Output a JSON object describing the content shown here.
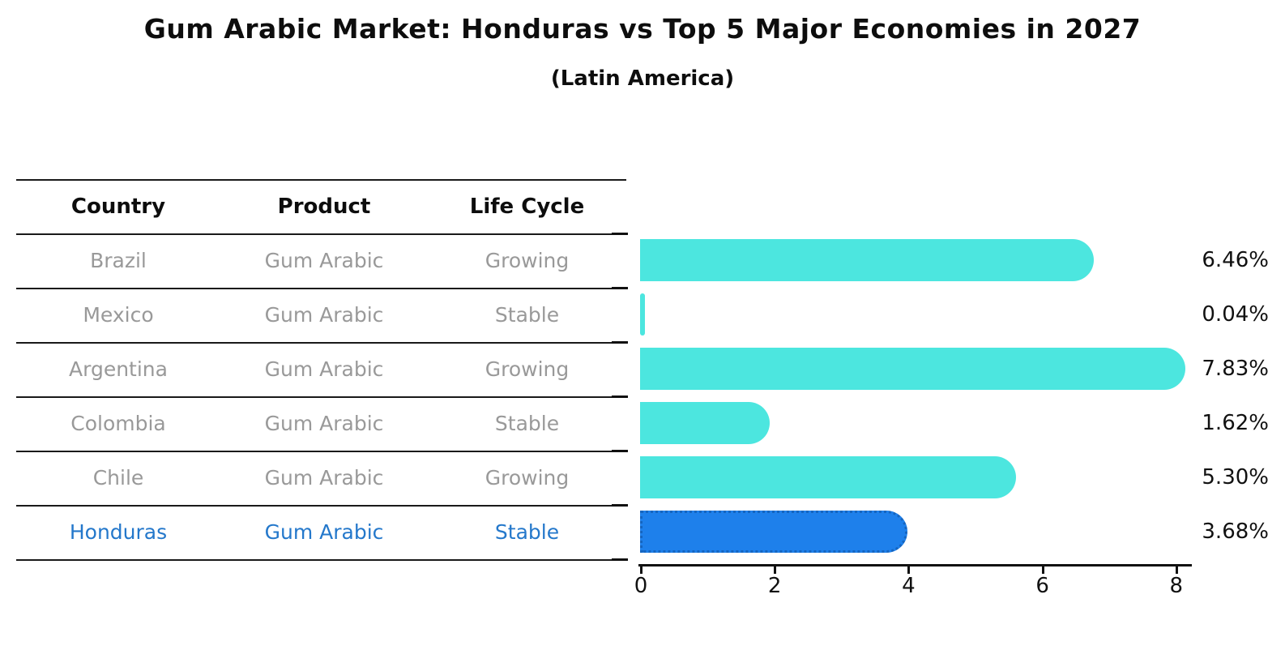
{
  "title": "Gum Arabic Market: Honduras vs Top 5 Major Economies in 2027",
  "subtitle": "(Latin America)",
  "table": {
    "headers": [
      "Country",
      "Product",
      "Life Cycle"
    ],
    "rows": [
      {
        "country": "Brazil",
        "product": "Gum Arabic",
        "life_cycle": "Growing"
      },
      {
        "country": "Mexico",
        "product": "Gum Arabic",
        "life_cycle": "Stable"
      },
      {
        "country": "Argentina",
        "product": "Gum Arabic",
        "life_cycle": "Growing"
      },
      {
        "country": "Colombia",
        "product": "Gum Arabic",
        "life_cycle": "Stable"
      },
      {
        "country": "Chile",
        "product": "Gum Arabic",
        "life_cycle": "Growing"
      },
      {
        "country": "Honduras",
        "product": "Gum Arabic",
        "life_cycle": "Stable"
      }
    ],
    "highlight_row": 5,
    "highlight_color": "#2478cb",
    "text_color": "#999999"
  },
  "chart_data": {
    "type": "bar",
    "orientation": "horizontal",
    "categories": [
      "Brazil",
      "Mexico",
      "Argentina",
      "Colombia",
      "Chile",
      "Honduras"
    ],
    "values": [
      6.46,
      0.04,
      7.83,
      1.62,
      5.3,
      3.68
    ],
    "value_labels": [
      "6.46%",
      "0.04%",
      "7.83%",
      "1.62%",
      "5.30%",
      "3.68%"
    ],
    "x_ticks": [
      0,
      2,
      4,
      6,
      8
    ],
    "xlim": [
      0,
      8
    ],
    "bar_color": "#4ce6df",
    "highlight_index": 5,
    "highlight_color": "#1e80eb",
    "highlight_edge_color": "#1565c0",
    "grid": false,
    "legend": false
  }
}
